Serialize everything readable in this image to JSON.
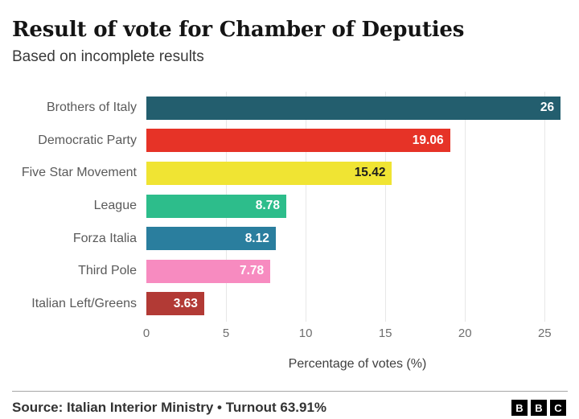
{
  "header": {
    "title": "Result of vote for Chamber of Deputies",
    "subtitle": "Based on incomplete results"
  },
  "chart_data": {
    "type": "bar",
    "orientation": "horizontal",
    "title": "Result of vote for Chamber of Deputies",
    "subtitle": "Based on incomplete results",
    "categories": [
      "Brothers of Italy",
      "Democratic Party",
      "Five Star Movement",
      "League",
      "Forza Italia",
      "Third Pole",
      "Italian Left/Greens"
    ],
    "values": [
      26,
      19.06,
      15.42,
      8.78,
      8.12,
      7.78,
      3.63
    ],
    "value_labels": [
      "26",
      "19.06",
      "15.42",
      "8.78",
      "8.12",
      "7.78",
      "3.63"
    ],
    "bar_colors": [
      "#235e6e",
      "#e63327",
      "#f0e433",
      "#2dbd8b",
      "#2a7e9e",
      "#f78bc0",
      "#b23a35"
    ],
    "value_label_colors": [
      "#ffffff",
      "#ffffff",
      "#1d1d1d",
      "#ffffff",
      "#ffffff",
      "#ffffff",
      "#ffffff"
    ],
    "xlabel": "Percentage of votes (%)",
    "ylabel": "",
    "xlim": [
      0,
      26.5
    ],
    "xticks": [
      0,
      5,
      10,
      15,
      20,
      25
    ],
    "grid": true,
    "gridline_color": "#e7e7e7",
    "legend": "none"
  },
  "footer": {
    "source": "Source: Italian Interior Ministry • Turnout 63.91%",
    "logo_letters": [
      "B",
      "B",
      "C"
    ]
  }
}
